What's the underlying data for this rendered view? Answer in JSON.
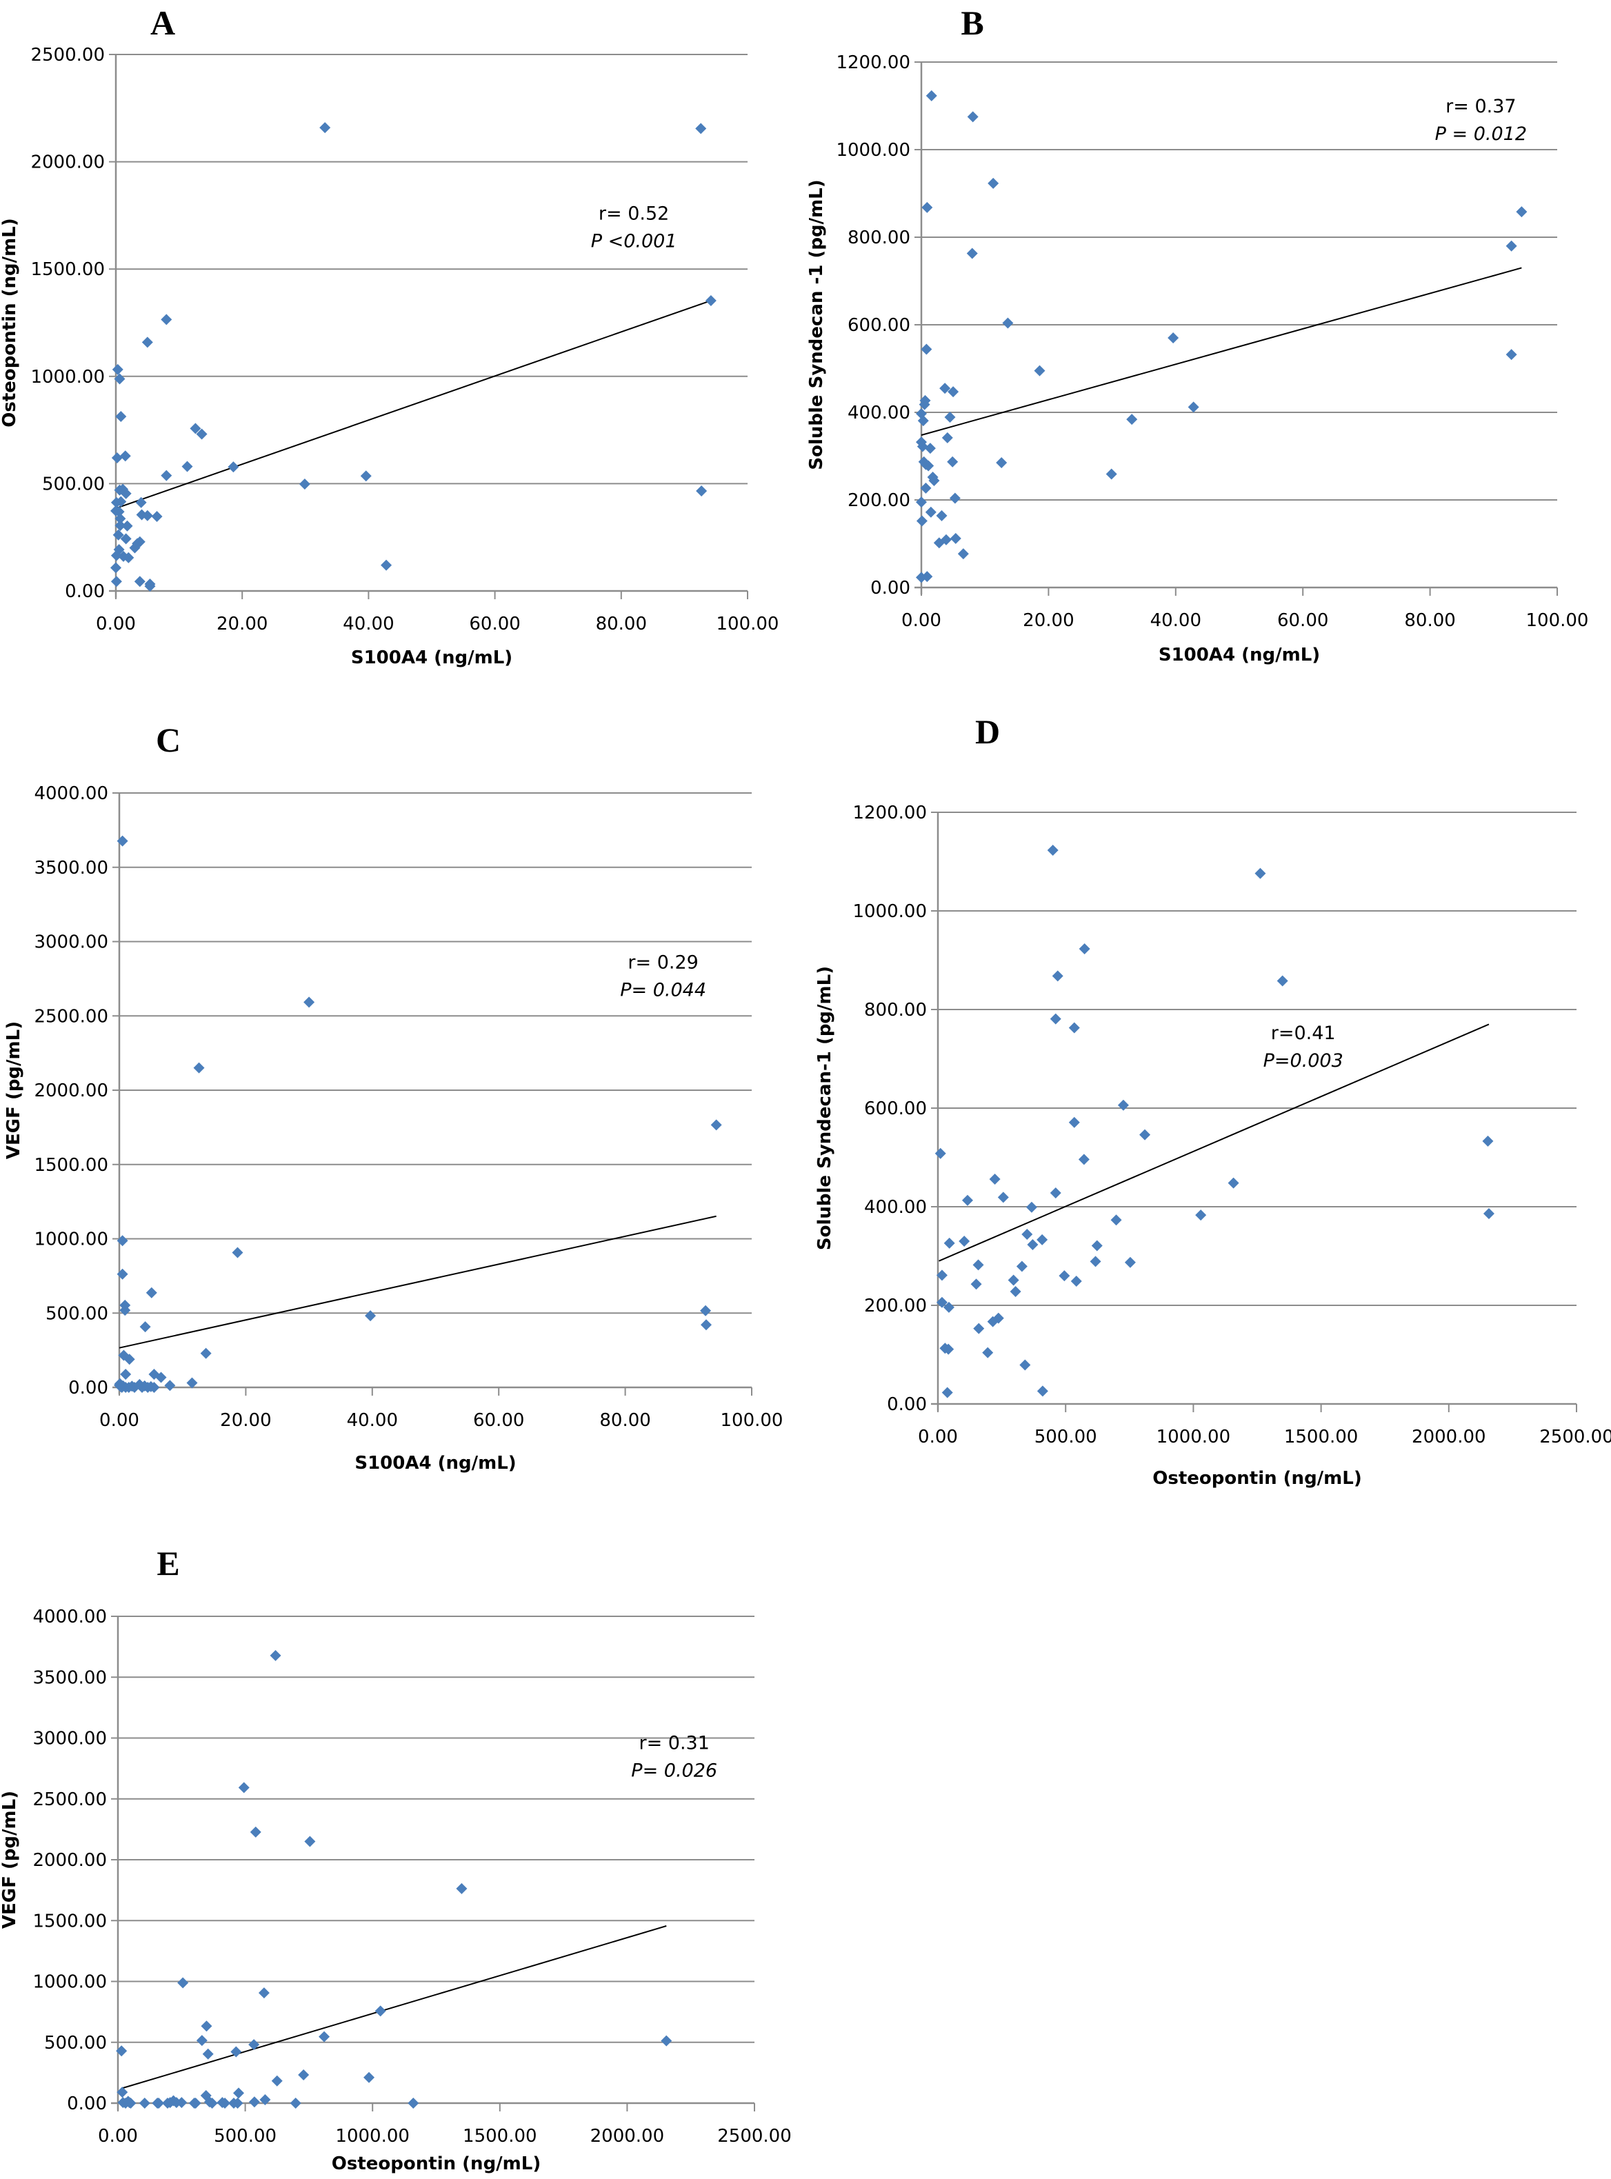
{
  "figure": {
    "marker_color": "#4a7ebb",
    "gridline_color": "#8c8c8c",
    "trendline_color": "#000000"
  },
  "chart_data": [
    {
      "id": "A",
      "type": "scatter",
      "panel_label": "A",
      "title": "",
      "xlabel": "S100A4 (ng/mL)",
      "ylabel": "Osteopontin (ng/mL)",
      "xlim": [
        0,
        100
      ],
      "ylim": [
        0,
        2500
      ],
      "xticks": [
        0,
        20,
        40,
        60,
        80,
        100
      ],
      "yticks": [
        0,
        500,
        1000,
        1500,
        2000,
        2500
      ],
      "xtick_labels": [
        "0.00",
        "20.00",
        "40.00",
        "60.00",
        "80.00",
        "100.00"
      ],
      "ytick_labels": [
        "0.00",
        "500.00",
        "1000.00",
        "1500.00",
        "2000.00",
        "2500.00"
      ],
      "grid": "horizontal",
      "annotation": {
        "r": "r= 0.52",
        "p": "P <0.001",
        "anchor_x": 82,
        "anchor_y": 1730
      },
      "trendline": [
        [
          0,
          385
        ],
        [
          94.2,
          1353
        ]
      ],
      "points": [
        [
          33.1,
          2159
        ],
        [
          92.6,
          2155
        ],
        [
          94.2,
          1353
        ],
        [
          8.0,
          1265
        ],
        [
          5.0,
          1159
        ],
        [
          0.3,
          1032
        ],
        [
          0.6,
          988
        ],
        [
          0.8,
          813
        ],
        [
          0.2,
          620
        ],
        [
          1.5,
          629
        ],
        [
          12.6,
          757
        ],
        [
          13.6,
          731
        ],
        [
          11.3,
          580
        ],
        [
          18.6,
          578
        ],
        [
          8.0,
          538
        ],
        [
          29.9,
          498
        ],
        [
          39.6,
          536
        ],
        [
          92.7,
          466
        ],
        [
          42.8,
          120
        ],
        [
          0.6,
          470
        ],
        [
          1.1,
          474
        ],
        [
          1.6,
          454
        ],
        [
          0.1,
          412
        ],
        [
          0.8,
          416
        ],
        [
          4.0,
          412
        ],
        [
          0.0,
          373
        ],
        [
          0.5,
          369
        ],
        [
          0.7,
          337
        ],
        [
          0.7,
          305
        ],
        [
          1.8,
          303
        ],
        [
          4.1,
          355
        ],
        [
          5.0,
          351
        ],
        [
          6.5,
          347
        ],
        [
          0.4,
          261
        ],
        [
          1.6,
          243
        ],
        [
          3.0,
          201
        ],
        [
          3.4,
          221
        ],
        [
          3.8,
          229
        ],
        [
          0.5,
          193
        ],
        [
          0.1,
          165
        ],
        [
          1.2,
          161
        ],
        [
          2.0,
          155
        ],
        [
          0.0,
          108
        ],
        [
          0.1,
          44
        ],
        [
          3.8,
          44
        ],
        [
          5.4,
          32
        ],
        [
          5.4,
          22
        ]
      ]
    },
    {
      "id": "B",
      "type": "scatter",
      "panel_label": "B",
      "title": "",
      "xlabel": "S100A4 (ng/mL)",
      "ylabel": "Soluble Syndecan -1 (pg/mL)",
      "xlim": [
        0,
        100
      ],
      "ylim": [
        0,
        1200
      ],
      "xticks": [
        0,
        20,
        40,
        60,
        80,
        100
      ],
      "yticks": [
        0,
        200,
        400,
        600,
        800,
        1000,
        1200
      ],
      "xtick_labels": [
        "0.00",
        "20.00",
        "40.00",
        "60.00",
        "80.00",
        "100.00"
      ],
      "ytick_labels": [
        "0.00",
        "200.00",
        "400.00",
        "600.00",
        "800.00",
        "1000.00",
        "1200.00"
      ],
      "grid": "horizontal",
      "annotation": {
        "r": "r= 0.37",
        "p": "P = 0.012",
        "anchor_x": 88,
        "anchor_y": 1085
      },
      "trendline": [
        [
          0,
          348
        ],
        [
          94.4,
          730
        ]
      ],
      "points": [
        [
          1.6,
          1123
        ],
        [
          8.1,
          1075
        ],
        [
          11.3,
          923
        ],
        [
          0.9,
          868
        ],
        [
          94.4,
          858
        ],
        [
          92.8,
          780
        ],
        [
          8.0,
          763
        ],
        [
          13.6,
          604
        ],
        [
          39.6,
          570
        ],
        [
          0.8,
          544
        ],
        [
          92.8,
          532
        ],
        [
          18.6,
          495
        ],
        [
          3.7,
          455
        ],
        [
          5.0,
          447
        ],
        [
          0.6,
          427
        ],
        [
          0.5,
          418
        ],
        [
          42.8,
          412
        ],
        [
          0.0,
          397
        ],
        [
          4.5,
          389
        ],
        [
          0.3,
          381
        ],
        [
          33.1,
          384
        ],
        [
          4.1,
          342
        ],
        [
          0.0,
          332
        ],
        [
          0.2,
          322
        ],
        [
          1.4,
          318
        ],
        [
          0.4,
          287
        ],
        [
          4.9,
          287
        ],
        [
          12.6,
          285
        ],
        [
          0.7,
          281
        ],
        [
          1.1,
          278
        ],
        [
          1.8,
          252
        ],
        [
          2.0,
          244
        ],
        [
          29.9,
          259
        ],
        [
          0.7,
          227
        ],
        [
          0.0,
          195
        ],
        [
          5.3,
          204
        ],
        [
          1.5,
          172
        ],
        [
          3.2,
          164
        ],
        [
          0.1,
          152
        ],
        [
          2.8,
          102
        ],
        [
          3.9,
          109
        ],
        [
          5.4,
          112
        ],
        [
          6.6,
          77
        ],
        [
          0.0,
          23
        ],
        [
          0.9,
          25
        ]
      ]
    },
    {
      "id": "C",
      "type": "scatter",
      "panel_label": "C",
      "title": "",
      "xlabel": "S100A4 (ng/mL)",
      "ylabel": "VEGF (pg/mL)",
      "xlim": [
        0,
        100
      ],
      "ylim": [
        0,
        4000
      ],
      "xticks": [
        0,
        20,
        40,
        60,
        80,
        100
      ],
      "yticks": [
        0,
        500,
        1000,
        1500,
        2000,
        2500,
        3000,
        3500,
        4000
      ],
      "xtick_labels": [
        "0.00",
        "20.00",
        "40.00",
        "60.00",
        "80.00",
        "100.00"
      ],
      "ytick_labels": [
        "0.00",
        "500.00",
        "1000.00",
        "1500.00",
        "2000.00",
        "2500.00",
        "3000.00",
        "3500.00",
        "4000.00"
      ],
      "grid": "horizontal",
      "annotation": {
        "r": "r= 0.29",
        "p": "P= 0.044",
        "anchor_x": 86,
        "anchor_y": 2820
      },
      "trendline": [
        [
          0,
          266
        ],
        [
          94.4,
          1152
        ]
      ],
      "points": [
        [
          0.5,
          3677
        ],
        [
          30.0,
          2592
        ],
        [
          12.6,
          2150
        ],
        [
          94.4,
          1766
        ],
        [
          0.5,
          987
        ],
        [
          18.7,
          907
        ],
        [
          0.5,
          762
        ],
        [
          5.1,
          637
        ],
        [
          0.9,
          553
        ],
        [
          0.9,
          519
        ],
        [
          92.7,
          516
        ],
        [
          39.7,
          482
        ],
        [
          92.8,
          421
        ],
        [
          4.1,
          408
        ],
        [
          0.7,
          216
        ],
        [
          1.6,
          189
        ],
        [
          13.7,
          229
        ],
        [
          1.0,
          88
        ],
        [
          5.5,
          88
        ],
        [
          6.6,
          67
        ],
        [
          11.5,
          30
        ],
        [
          8.0,
          13
        ],
        [
          0.0,
          15
        ],
        [
          0.2,
          5
        ],
        [
          0.4,
          0
        ],
        [
          0.6,
          10
        ],
        [
          1.0,
          0
        ],
        [
          1.5,
          0
        ],
        [
          2.0,
          8
        ],
        [
          3.2,
          20
        ],
        [
          3.6,
          0
        ],
        [
          4.0,
          10
        ],
        [
          4.5,
          0
        ],
        [
          5.0,
          5
        ],
        [
          5.5,
          0
        ],
        [
          0.1,
          25
        ],
        [
          2.4,
          0
        ]
      ]
    },
    {
      "id": "D",
      "type": "scatter",
      "panel_label": "D",
      "title": "",
      "xlabel": "Osteopontin (ng/mL)",
      "ylabel": "Soluble Syndecan-1 (pg/mL)",
      "xlim": [
        0,
        2500
      ],
      "ylim": [
        0,
        1200
      ],
      "xticks": [
        0,
        500,
        1000,
        1500,
        2000,
        2500
      ],
      "yticks": [
        0,
        200,
        400,
        600,
        800,
        1000,
        1200
      ],
      "xtick_labels": [
        "0.00",
        "500.00",
        "1000.00",
        "1500.00",
        "2000.00",
        "2500.00"
      ],
      "ytick_labels": [
        "0.00",
        "200.00",
        "400.00",
        "600.00",
        "800.00",
        "1000.00",
        "1200.00"
      ],
      "grid": "horizontal",
      "annotation": {
        "r": "r=0.41",
        "p": "P=0.003",
        "anchor_x": 1430,
        "anchor_y": 740
      },
      "trendline": [
        [
          4,
          290
        ],
        [
          2157,
          770
        ]
      ],
      "points": [
        [
          450,
          1123
        ],
        [
          1262,
          1076
        ],
        [
          574,
          923
        ],
        [
          469,
          868
        ],
        [
          1349,
          858
        ],
        [
          461,
          781
        ],
        [
          534,
          763
        ],
        [
          726,
          606
        ],
        [
          534,
          571
        ],
        [
          810,
          546
        ],
        [
          2153,
          533
        ],
        [
          10,
          508
        ],
        [
          572,
          496
        ],
        [
          223,
          456
        ],
        [
          1157,
          448
        ],
        [
          461,
          428
        ],
        [
          256,
          419
        ],
        [
          116,
          413
        ],
        [
          367,
          399
        ],
        [
          1029,
          383
        ],
        [
          2157,
          386
        ],
        [
          698,
          373
        ],
        [
          349,
          344
        ],
        [
          408,
          333
        ],
        [
          103,
          330
        ],
        [
          45,
          326
        ],
        [
          371,
          323
        ],
        [
          623,
          321
        ],
        [
          617,
          289
        ],
        [
          753,
          287
        ],
        [
          158,
          282
        ],
        [
          329,
          279
        ],
        [
          16,
          261
        ],
        [
          495,
          260
        ],
        [
          296,
          251
        ],
        [
          542,
          249
        ],
        [
          150,
          243
        ],
        [
          304,
          228
        ],
        [
          16,
          206
        ],
        [
          43,
          196
        ],
        [
          237,
          174
        ],
        [
          215,
          167
        ],
        [
          160,
          153
        ],
        [
          28,
          113
        ],
        [
          41,
          111
        ],
        [
          195,
          104
        ],
        [
          341,
          79
        ],
        [
          37,
          23
        ],
        [
          410,
          26
        ]
      ]
    },
    {
      "id": "E",
      "type": "scatter",
      "panel_label": "E",
      "title": "",
      "xlabel": "Osteopontin (ng/mL)",
      "ylabel": "VEGF (pg/mL)",
      "xlim": [
        0,
        2500
      ],
      "ylim": [
        0,
        4000
      ],
      "xticks": [
        0,
        500,
        1000,
        1500,
        2000,
        2500
      ],
      "yticks": [
        0,
        500,
        1000,
        1500,
        2000,
        2500,
        3000,
        3500,
        4000
      ],
      "xtick_labels": [
        "0.00",
        "500.00",
        "1000.00",
        "1500.00",
        "2000.00",
        "2500.00"
      ],
      "ytick_labels": [
        "0.00",
        "500.00",
        "1000.00",
        "1500.00",
        "2000.00",
        "2500.00",
        "3000.00",
        "3500.00",
        "4000.00"
      ],
      "grid": "horizontal",
      "annotation": {
        "r": "r= 0.31",
        "p": "P= 0.026",
        "anchor_x": 2185,
        "anchor_y": 2910
      },
      "trendline": [
        [
          14,
          121
        ],
        [
          2154,
          1456
        ]
      ],
      "points": [
        [
          619,
          3678
        ],
        [
          495,
          2593
        ],
        [
          541,
          2227
        ],
        [
          754,
          2150
        ],
        [
          1350,
          1763
        ],
        [
          255,
          989
        ],
        [
          574,
          906
        ],
        [
          1031,
          757
        ],
        [
          348,
          633
        ],
        [
          810,
          546
        ],
        [
          330,
          515
        ],
        [
          2154,
          512
        ],
        [
          534,
          481
        ],
        [
          14,
          429
        ],
        [
          464,
          422
        ],
        [
          354,
          404
        ],
        [
          625,
          183
        ],
        [
          729,
          232
        ],
        [
          986,
          211
        ],
        [
          17,
          90
        ],
        [
          474,
          83
        ],
        [
          346,
          62
        ],
        [
          578,
          28
        ],
        [
          536,
          10
        ],
        [
          698,
          0
        ],
        [
          1160,
          0
        ],
        [
          20,
          5
        ],
        [
          30,
          0
        ],
        [
          40,
          15
        ],
        [
          45,
          5
        ],
        [
          50,
          0
        ],
        [
          105,
          0
        ],
        [
          155,
          0
        ],
        [
          160,
          0
        ],
        [
          195,
          0
        ],
        [
          205,
          5
        ],
        [
          218,
          20
        ],
        [
          230,
          5
        ],
        [
          250,
          5
        ],
        [
          300,
          0
        ],
        [
          305,
          0
        ],
        [
          360,
          10
        ],
        [
          370,
          0
        ],
        [
          410,
          5
        ],
        [
          420,
          0
        ],
        [
          455,
          0
        ],
        [
          470,
          0
        ]
      ]
    }
  ]
}
